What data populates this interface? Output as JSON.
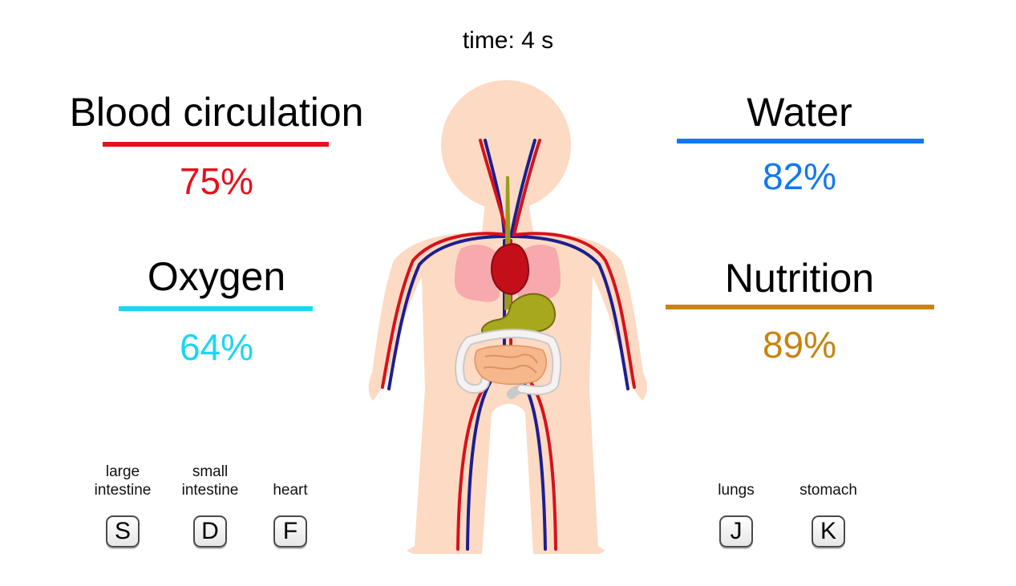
{
  "timer": {
    "text": "time: 4 s"
  },
  "stats": {
    "blood": {
      "title": "Blood circulation",
      "value": "75%",
      "color": "#e8101c"
    },
    "oxygen": {
      "title": "Oxygen",
      "value": "64%",
      "color": "#1ad6f5"
    },
    "water": {
      "title": "Water",
      "value": "82%",
      "color": "#1178f0"
    },
    "nutrition": {
      "title": "Nutrition",
      "value": "89%",
      "color": "#c8830e"
    }
  },
  "keys": [
    {
      "label": "large\nintestine",
      "key": "S"
    },
    {
      "label": "small\nintestine",
      "key": "D"
    },
    {
      "label": "heart",
      "key": "F"
    },
    {
      "label": "lungs",
      "key": "J"
    },
    {
      "label": "stomach",
      "key": "K"
    }
  ],
  "organ_icons": [
    "heart-icon",
    "lungs-icon",
    "stomach-icon",
    "small-intestine-icon",
    "large-intestine-icon",
    "arteries-icon",
    "veins-icon",
    "esophagus-icon"
  ]
}
